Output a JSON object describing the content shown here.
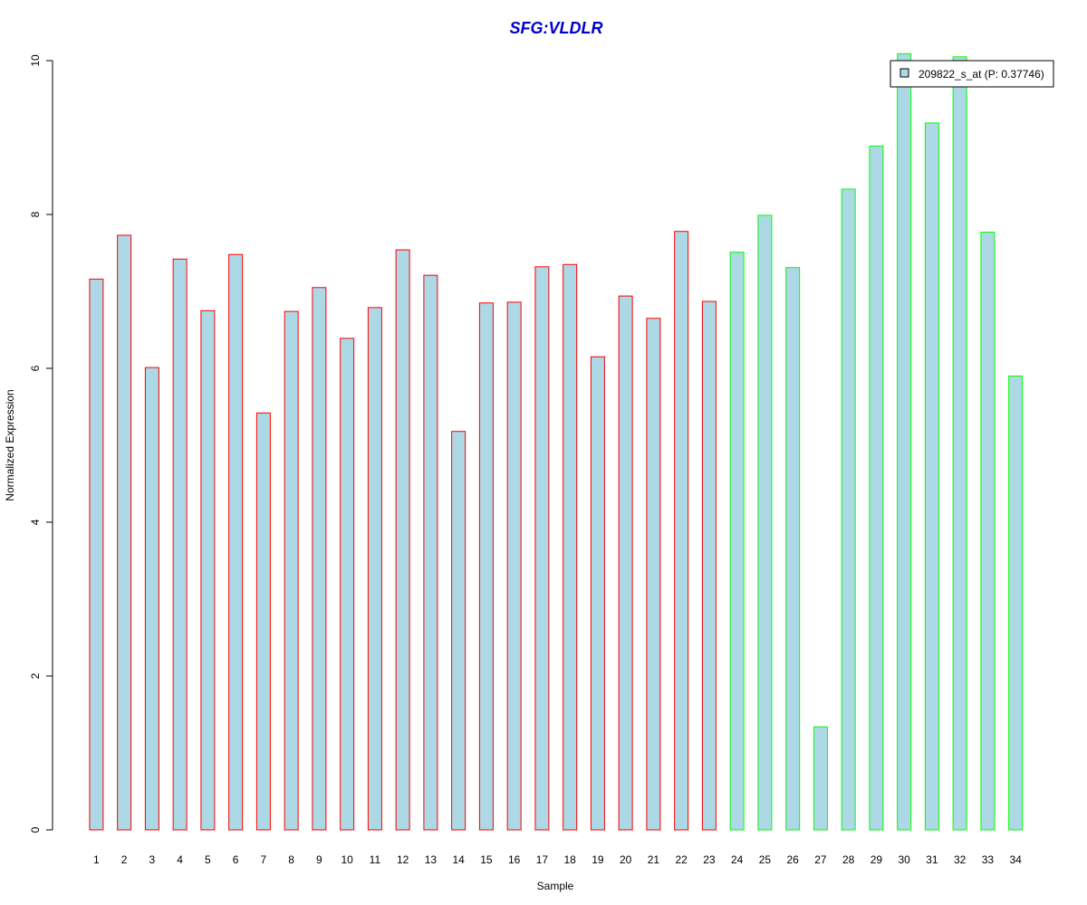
{
  "chart_data": {
    "type": "bar",
    "title": "SFG:VLDLR",
    "xlabel": "Sample",
    "ylabel": "Normalized Expression",
    "ylim": [
      0,
      10
    ],
    "yticks": [
      "0",
      "2",
      "4",
      "6",
      "8",
      "10"
    ],
    "categories": [
      "1",
      "2",
      "3",
      "4",
      "5",
      "6",
      "7",
      "8",
      "9",
      "10",
      "11",
      "12",
      "13",
      "14",
      "15",
      "16",
      "17",
      "18",
      "19",
      "20",
      "21",
      "22",
      "23",
      "24",
      "25",
      "26",
      "27",
      "28",
      "29",
      "30",
      "31",
      "32",
      "33",
      "34"
    ],
    "values": [
      7.16,
      7.73,
      6.01,
      7.42,
      6.75,
      7.48,
      5.42,
      6.74,
      7.05,
      6.39,
      6.79,
      7.54,
      7.21,
      5.18,
      6.85,
      6.86,
      7.32,
      7.35,
      6.15,
      6.94,
      6.65,
      7.78,
      6.87,
      7.51,
      7.99,
      7.31,
      1.34,
      8.33,
      8.89,
      10.09,
      9.19,
      10.05,
      7.77,
      5.9
    ],
    "group_split_index": 23,
    "colors": {
      "bar_fill": "#ADD8E6",
      "group1_border": "#FF0000",
      "group2_border": "#00FF00",
      "title": "#0000CD"
    },
    "legend": {
      "position": "top-right",
      "label": "209822_s_at (P: 0.37746)"
    },
    "grid": false
  }
}
